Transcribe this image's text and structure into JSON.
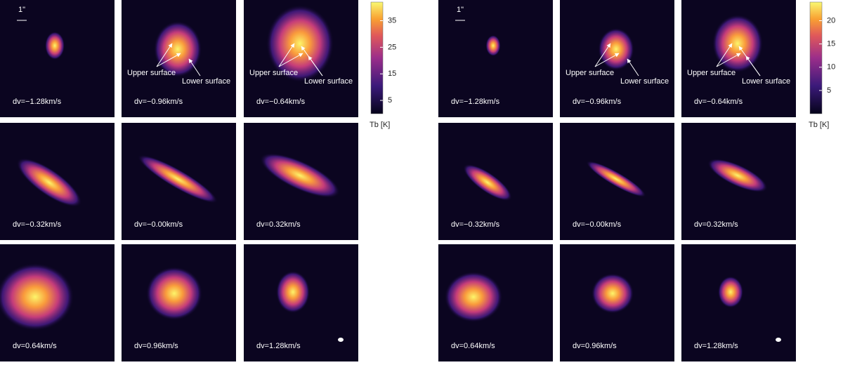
{
  "figures": [
    {
      "scale_label": "1\"",
      "panels": [
        {
          "label": "dv=−1.28km/s"
        },
        {
          "label": "dv=−0.96km/s",
          "annotations": [
            "Upper surface",
            "Lower surface"
          ]
        },
        {
          "label": "dv=−0.64km/s",
          "annotations": [
            "Upper surface",
            "Lower surface"
          ]
        },
        {
          "label": "dv=−0.32km/s"
        },
        {
          "label": "dv=−0.00km/s"
        },
        {
          "label": "dv=0.32km/s"
        },
        {
          "label": "dv=0.64km/s"
        },
        {
          "label": "dv=0.96km/s"
        },
        {
          "label": "dv=1.28km/s"
        }
      ],
      "colorbar": {
        "label": "Tb [K]",
        "lim": [
          0,
          42
        ],
        "ticks": [
          5,
          15,
          25,
          35
        ]
      }
    },
    {
      "scale_label": "1\"",
      "panels": [
        {
          "label": "dv=−1.28km/s"
        },
        {
          "label": "dv=−0.96km/s",
          "annotations": [
            "Upper surface",
            "Lower surface"
          ]
        },
        {
          "label": "dv=−0.64km/s",
          "annotations": [
            "Upper surface",
            "Lower surface"
          ]
        },
        {
          "label": "dv=−0.32km/s"
        },
        {
          "label": "dv=−0.00km/s"
        },
        {
          "label": "dv=0.32km/s"
        },
        {
          "label": "dv=0.64km/s"
        },
        {
          "label": "dv=0.96km/s"
        },
        {
          "label": "dv=1.28km/s"
        }
      ],
      "colorbar": {
        "label": "Tb [K]",
        "lim": [
          0,
          24
        ],
        "ticks": [
          5,
          10,
          15,
          20
        ]
      }
    }
  ]
}
